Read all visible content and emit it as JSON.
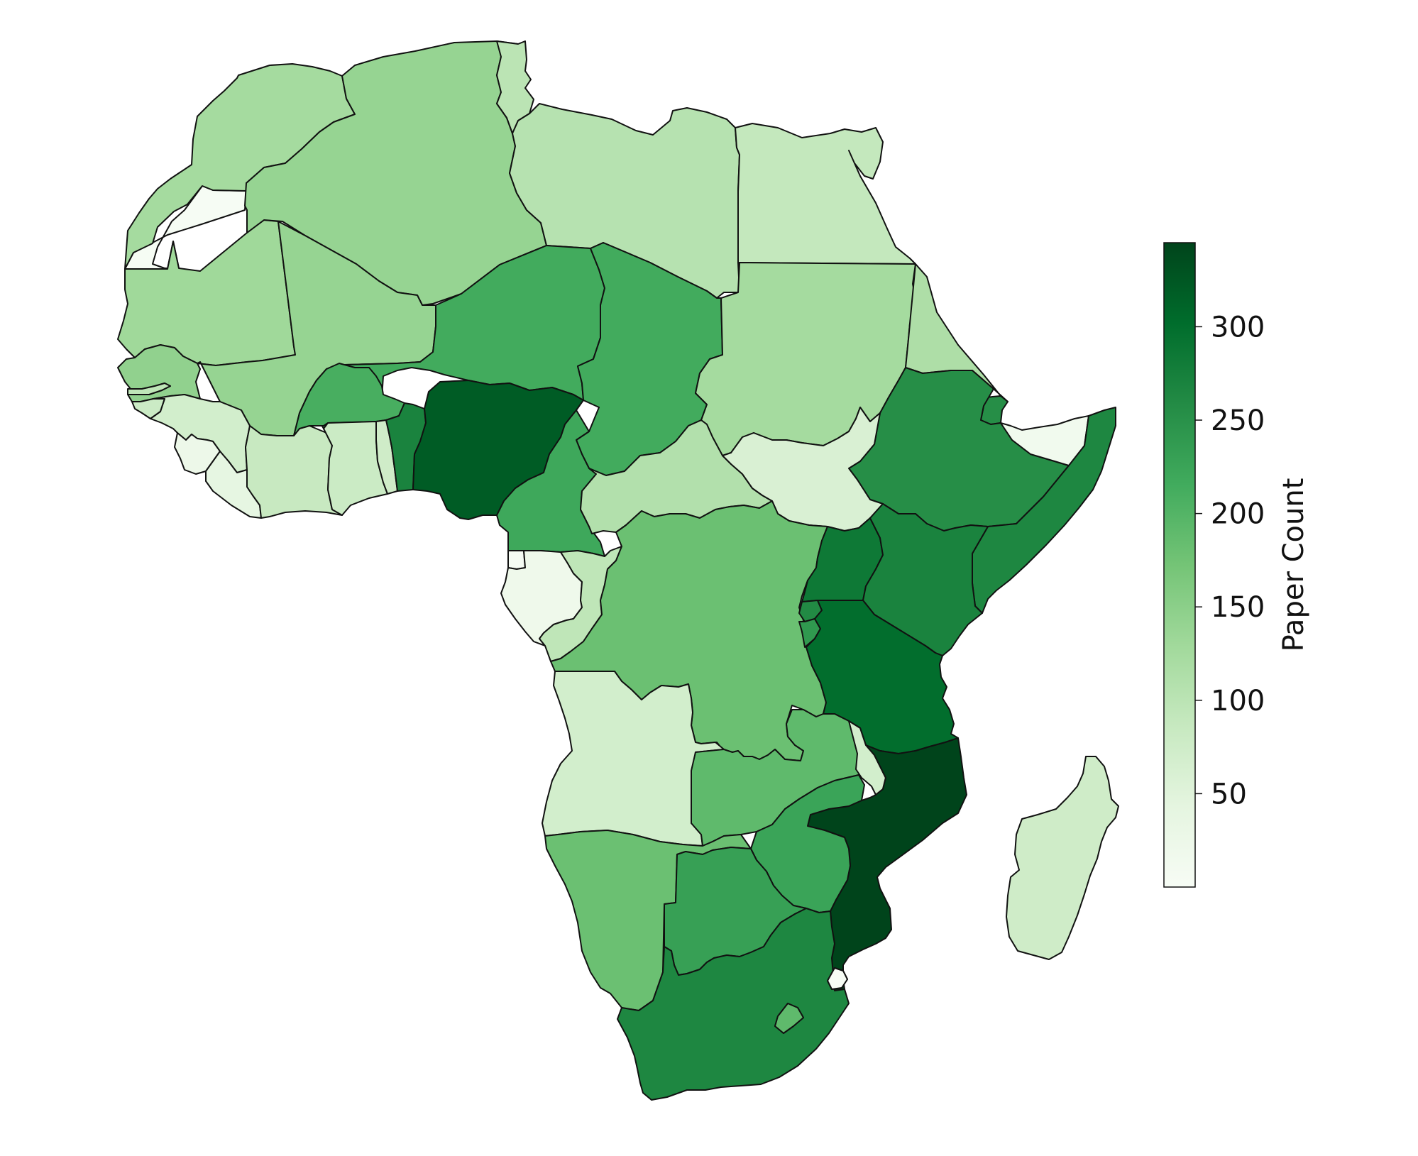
{
  "colorbar": {
    "label": "Paper Count",
    "min": 0,
    "max": 345,
    "ticks": [
      50,
      100,
      150,
      200,
      250,
      300
    ],
    "tick_labels": [
      "50",
      "100",
      "150",
      "200",
      "250",
      "300"
    ],
    "colormap_stops": [
      "#f7fcf5",
      "#e5f5e0",
      "#c7e9c0",
      "#a1d99b",
      "#74c476",
      "#41ab5d",
      "#238b45",
      "#006d2c",
      "#00441b"
    ]
  },
  "countries": [
    {
      "name": "Morocco",
      "value": 125
    },
    {
      "name": "Western Sahara",
      "value": 2
    },
    {
      "name": "Algeria",
      "value": 140
    },
    {
      "name": "Tunisia",
      "value": 100
    },
    {
      "name": "Libya",
      "value": 105
    },
    {
      "name": "Egypt",
      "value": 90
    },
    {
      "name": "Mauritania",
      "value": 130
    },
    {
      "name": "Mali",
      "value": 140
    },
    {
      "name": "Niger",
      "value": 215
    },
    {
      "name": "Chad",
      "value": 215
    },
    {
      "name": "Sudan",
      "value": 125
    },
    {
      "name": "Eritrea",
      "value": 115
    },
    {
      "name": "Djibouti",
      "value": 255
    },
    {
      "name": "Ethiopia",
      "value": 255
    },
    {
      "name": "Somalia",
      "value": 265
    },
    {
      "name": "Somaliland",
      "value": 15
    },
    {
      "name": "Senegal",
      "value": 145
    },
    {
      "name": "Gambia",
      "value": 95
    },
    {
      "name": "Guinea-Bissau",
      "value": 80
    },
    {
      "name": "Guinea",
      "value": 70
    },
    {
      "name": "Sierra Leone",
      "value": 25
    },
    {
      "name": "Liberia",
      "value": 40
    },
    {
      "name": "Côte d'Ivoire",
      "value": 85
    },
    {
      "name": "Burkina Faso",
      "value": 210
    },
    {
      "name": "Ghana",
      "value": 80
    },
    {
      "name": "Togo",
      "value": 75
    },
    {
      "name": "Benin",
      "value": 270
    },
    {
      "name": "Nigeria",
      "value": 320
    },
    {
      "name": "Cameroon",
      "value": 220
    },
    {
      "name": "Central African Republic",
      "value": 110
    },
    {
      "name": "South Sudan",
      "value": 60
    },
    {
      "name": "Equatorial Guinea",
      "value": 5
    },
    {
      "name": "Gabon",
      "value": 20
    },
    {
      "name": "Republic of the Congo",
      "value": 95
    },
    {
      "name": "DR Congo",
      "value": 180
    },
    {
      "name": "Uganda",
      "value": 285
    },
    {
      "name": "Kenya",
      "value": 270
    },
    {
      "name": "Rwanda",
      "value": 260
    },
    {
      "name": "Burundi",
      "value": 240
    },
    {
      "name": "Tanzania",
      "value": 300
    },
    {
      "name": "Angola",
      "value": 70
    },
    {
      "name": "Zambia",
      "value": 190
    },
    {
      "name": "Malawi",
      "value": 70
    },
    {
      "name": "Mozambique",
      "value": 345
    },
    {
      "name": "Zimbabwe",
      "value": 225
    },
    {
      "name": "Namibia",
      "value": 180
    },
    {
      "name": "Botswana",
      "value": 230
    },
    {
      "name": "South Africa",
      "value": 265
    },
    {
      "name": "Lesotho",
      "value": 190
    },
    {
      "name": "Eswatini",
      "value": 1
    },
    {
      "name": "Madagascar",
      "value": 75
    }
  ]
}
